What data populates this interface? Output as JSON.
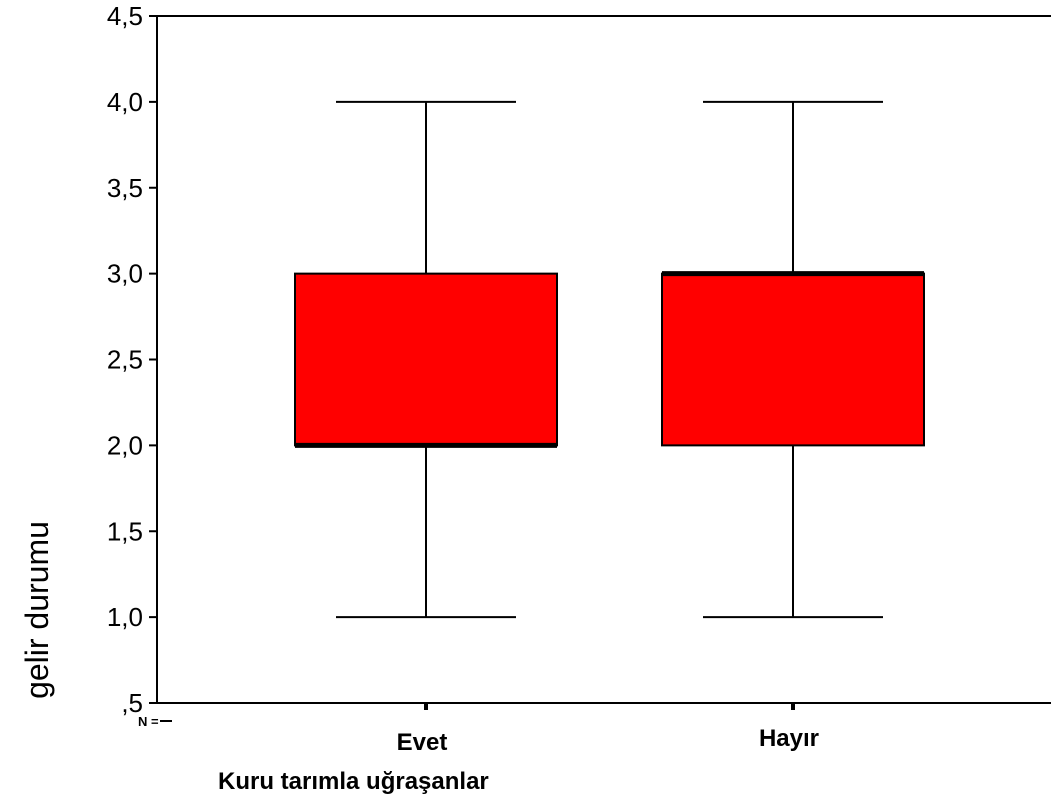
{
  "chart_data": {
    "type": "boxplot",
    "title": "",
    "xlabel": "Kuru tarımla uğraşanlar",
    "ylabel": "gelir durumu",
    "ylim": [
      0.5,
      4.5
    ],
    "y_ticks": [
      0.5,
      1.0,
      1.5,
      2.0,
      2.5,
      3.0,
      3.5,
      4.0,
      4.5
    ],
    "y_tick_labels": [
      ",5",
      "1,0",
      "1,5",
      "2,0",
      "2,5",
      "3,0",
      "3,5",
      "4,0",
      "4,5"
    ],
    "categories": [
      "Evet",
      "Hayır"
    ],
    "n_label": "N =",
    "boxes": [
      {
        "category": "Evet",
        "min": 1.0,
        "q1": 2.0,
        "median": 2.0,
        "q3": 3.0,
        "max": 4.0
      },
      {
        "category": "Hayır",
        "min": 1.0,
        "q1": 2.0,
        "median": 3.0,
        "q3": 3.0,
        "max": 4.0
      }
    ],
    "box_color": "#ff0000",
    "line_color": "#000000",
    "grid": false,
    "legend": "none"
  }
}
